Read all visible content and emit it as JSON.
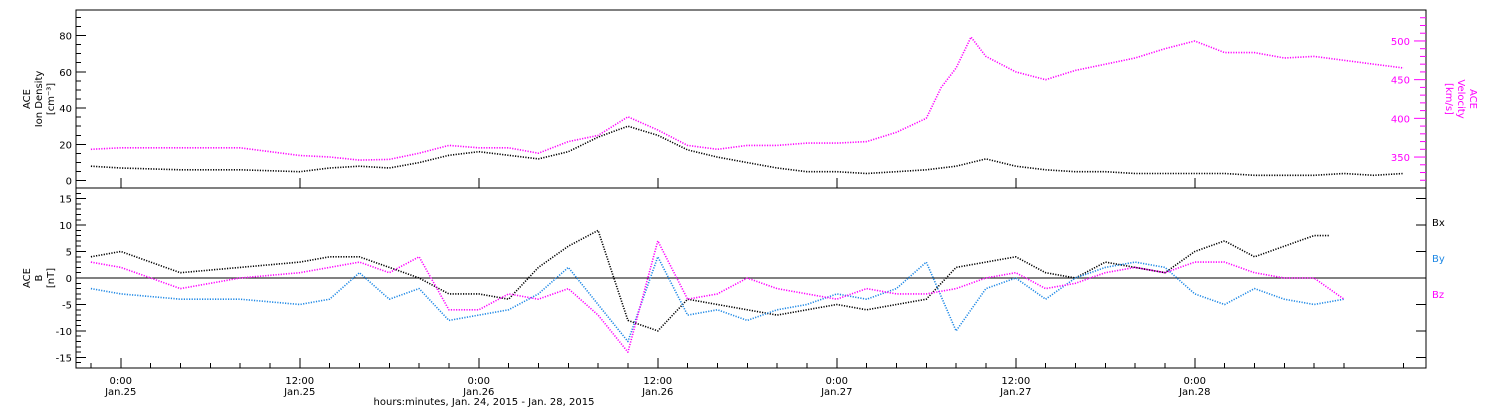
{
  "chart_data": [
    {
      "type": "scatter",
      "ylabel_left": [
        "ACE",
        "Ion Density",
        "[cm⁻³]"
      ],
      "ylabel_right": [
        "ACE",
        "Velocity",
        "[km/s]"
      ],
      "y_left_ticks": [
        "0",
        "20",
        "40",
        "60",
        "80"
      ],
      "y_left_range": [
        -4,
        94
      ],
      "y_right_ticks": [
        "350",
        "400",
        "450",
        "500"
      ],
      "y_right_range": [
        310,
        540
      ],
      "colors": {
        "density": "#000000",
        "velocity": "#ff00ff"
      },
      "series": [
        {
          "key": "density",
          "axis": "left",
          "x_hours": [
            -2,
            0,
            4,
            8,
            12,
            14,
            16,
            18,
            20,
            22,
            24,
            26,
            28,
            30,
            32,
            34,
            36,
            38,
            40,
            42,
            44,
            46,
            48,
            50,
            52,
            54,
            56,
            58,
            60,
            62,
            64,
            66,
            68,
            70,
            72,
            74,
            76,
            78,
            80,
            82,
            84,
            86
          ],
          "values": [
            8,
            7,
            6,
            6,
            5,
            7,
            8,
            7,
            10,
            14,
            16,
            14,
            12,
            16,
            24,
            30,
            25,
            17,
            13,
            10,
            7,
            5,
            5,
            4,
            5,
            6,
            8,
            12,
            8,
            6,
            5,
            5,
            4,
            4,
            4,
            4,
            3,
            3,
            3,
            4,
            3,
            4
          ]
        },
        {
          "key": "velocity",
          "axis": "right",
          "x_hours": [
            -2,
            0,
            4,
            8,
            12,
            14,
            16,
            18,
            20,
            22,
            24,
            26,
            28,
            30,
            32,
            34,
            36,
            38,
            40,
            42,
            44,
            46,
            48,
            50,
            52,
            54,
            55,
            56,
            57,
            58,
            60,
            62,
            64,
            66,
            68,
            70,
            72,
            74,
            76,
            78,
            80,
            82,
            84,
            86
          ],
          "values": [
            360,
            362,
            362,
            362,
            352,
            350,
            346,
            347,
            355,
            365,
            362,
            362,
            355,
            370,
            378,
            402,
            385,
            365,
            360,
            365,
            365,
            368,
            368,
            370,
            382,
            400,
            440,
            465,
            505,
            480,
            460,
            450,
            462,
            470,
            478,
            490,
            500,
            485,
            485,
            478,
            480,
            475,
            470,
            465
          ]
        }
      ]
    },
    {
      "type": "scatter",
      "ylabel_left": [
        "ACE",
        "B",
        "[nT]"
      ],
      "y_ticks": [
        "-15",
        "-10",
        "-5",
        "0",
        "5",
        "10",
        "15"
      ],
      "y_range": [
        -17,
        17
      ],
      "legend": [
        "Bx",
        "By",
        "Bz"
      ],
      "colors": {
        "Bx": "#000000",
        "By": "#1e88e5",
        "Bz": "#ff00ff"
      },
      "series": [
        {
          "name": "Bx",
          "x_hours": [
            -2,
            0,
            4,
            8,
            12,
            14,
            16,
            18,
            20,
            22,
            24,
            26,
            28,
            30,
            32,
            34,
            36,
            38,
            40,
            42,
            44,
            46,
            48,
            50,
            52,
            54,
            56,
            58,
            60,
            62,
            64,
            66,
            68,
            70,
            72,
            74,
            76,
            78,
            80,
            81
          ],
          "values": [
            4,
            5,
            1,
            2,
            3,
            4,
            4,
            2,
            0,
            -3,
            -3,
            -4,
            2,
            6,
            9,
            -8,
            -10,
            -4,
            -5,
            -6,
            -7,
            -6,
            -5,
            -6,
            -5,
            -4,
            2,
            3,
            4,
            1,
            0,
            3,
            2,
            1,
            5,
            7,
            4,
            6,
            8,
            8
          ]
        },
        {
          "name": "By",
          "x_hours": [
            -2,
            0,
            4,
            8,
            12,
            14,
            16,
            18,
            20,
            22,
            24,
            26,
            28,
            30,
            32,
            34,
            36,
            38,
            40,
            42,
            44,
            46,
            48,
            50,
            52,
            54,
            56,
            58,
            60,
            62,
            64,
            66,
            68,
            70,
            72,
            74,
            76,
            78,
            80,
            82
          ],
          "values": [
            -2,
            -3,
            -4,
            -4,
            -5,
            -4,
            1,
            -4,
            -2,
            -8,
            -7,
            -6,
            -3,
            2,
            -5,
            -12,
            4,
            -7,
            -6,
            -8,
            -6,
            -5,
            -3,
            -4,
            -2,
            3,
            -10,
            -2,
            0,
            -4,
            0,
            2,
            3,
            2,
            -3,
            -5,
            -2,
            -4,
            -5,
            -4
          ]
        },
        {
          "name": "Bz",
          "x_hours": [
            -2,
            0,
            4,
            8,
            12,
            14,
            16,
            18,
            20,
            22,
            24,
            26,
            28,
            30,
            32,
            34,
            36,
            38,
            40,
            42,
            44,
            46,
            48,
            50,
            52,
            54,
            56,
            58,
            60,
            62,
            64,
            66,
            68,
            70,
            72,
            74,
            76,
            78,
            80,
            82
          ],
          "values": [
            3,
            2,
            -2,
            0,
            1,
            2,
            3,
            1,
            4,
            -6,
            -6,
            -3,
            -4,
            -2,
            -7,
            -14,
            7,
            -4,
            -3,
            0,
            -2,
            -3,
            -4,
            -2,
            -3,
            -3,
            -2,
            0,
            1,
            -2,
            -1,
            1,
            2,
            1,
            3,
            3,
            1,
            0,
            0,
            -4
          ]
        }
      ]
    },
    {
      "type": "axis",
      "x_range_hours": [
        -3,
        87.5
      ],
      "x_tick_hours": [
        0,
        12,
        24,
        36,
        48,
        60,
        72
      ],
      "x_ticks": [
        {
          "time": "0:00",
          "date": "Jan.25"
        },
        {
          "time": "12:00",
          "date": "Jan.25"
        },
        {
          "time": "0:00",
          "date": "Jan.26"
        },
        {
          "time": "12:00",
          "date": "Jan.26"
        },
        {
          "time": "0:00",
          "date": "Jan.27"
        },
        {
          "time": "12:00",
          "date": "Jan.27"
        },
        {
          "time": "0:00",
          "date": "Jan.28"
        }
      ],
      "xlabel": "hours:minutes, Jan. 24, 2015 - Jan. 28, 2015"
    }
  ]
}
